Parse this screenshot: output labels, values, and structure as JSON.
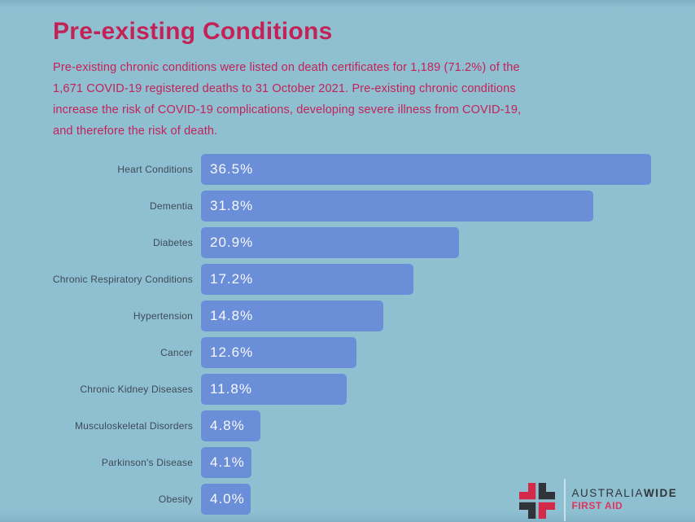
{
  "colors": {
    "background": "#8fc0d2",
    "accent": "#c32257",
    "bar": "#6b8ed8",
    "category_label": "#3e4956",
    "logo_dark": "#303438",
    "logo_red": "#d42a4a",
    "tagline_red": "#e0335c"
  },
  "header": {
    "title": "Pre-existing Conditions",
    "description": "Pre-existing chronic conditions were listed on death certificates for 1,189 (71.2%) of the 1,671 COVID-19 registered deaths to 31 October 2021. Pre-existing chronic conditions increase the risk of COVID-19 complications, developing severe illness from COVID-19, and therefore the risk of death."
  },
  "chart_data": {
    "type": "bar",
    "orientation": "horizontal",
    "title": "Pre-existing Conditions",
    "categories": [
      "Heart Conditions",
      "Dementia",
      "Diabetes",
      "Chronic Respiratory Conditions",
      "Hypertension",
      "Cancer",
      "Chronic Kidney Diseases",
      "Musculoskeletal Disorders",
      "Parkinson's Disease",
      "Obesity"
    ],
    "values": [
      36.5,
      31.8,
      20.9,
      17.2,
      14.8,
      12.6,
      11.8,
      4.8,
      4.1,
      4.0
    ],
    "value_labels": [
      "36.5%",
      "31.8%",
      "20.9%",
      "17.2%",
      "14.8%",
      "12.6%",
      "11.8%",
      "4.8%",
      "4.1%",
      "4.0%"
    ],
    "xlabel": "",
    "ylabel": "",
    "xlim": [
      0,
      36.5
    ],
    "grid": false,
    "legend": false,
    "value_label_position": "inside-left",
    "bar_color": "#6b8ed8"
  },
  "logo": {
    "brand_regular": "AUSTRALIA",
    "brand_bold": "WIDE",
    "tagline": "FIRST AID"
  }
}
